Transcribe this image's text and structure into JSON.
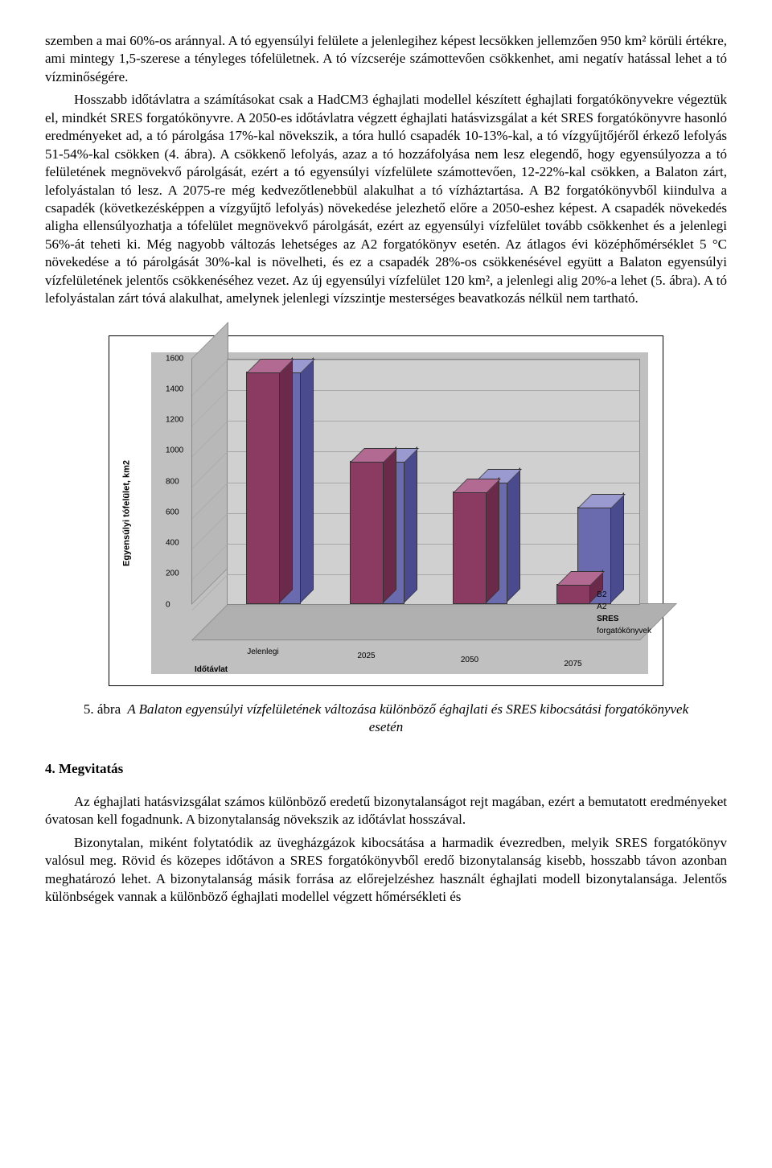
{
  "text": {
    "p1": "szemben a mai 60%-os aránnyal. A tó egyensúlyi felülete a jelenlegihez képest lecsökken jellemzően 950 km² körüli értékre, ami mintegy 1,5-szerese a tényleges tófelületnek. A tó vízcseréje számottevően csökkenhet, ami negatív hatással lehet a tó vízminőségére.",
    "p2": "Hosszabb időtávlatra a számításokat csak a HadCM3 éghajlati modellel készített éghajlati forgatókönyvekre végeztük el, mindkét SRES forgatókönyvre. A 2050-es időtávlatra végzett éghajlati hatásvizsgálat a két SRES forgatókönyvre hasonló eredményeket ad, a tó párolgása 17%-kal növekszik, a tóra hulló csapadék 10-13%-kal, a tó vízgyűjtőjéről érkező lefolyás 51-54%-kal csökken (4. ábra). A csökkenő lefolyás, azaz a tó hozzáfolyása nem lesz elegendő, hogy egyensúlyozza a tó felületének megnövekvő párolgását, ezért a tó egyensúlyi vízfelülete számottevően, 12-22%-kal csökken, a Balaton zárt, lefolyástalan tó lesz. A 2075-re még kedvezőtlenebbül alakulhat a tó vízháztartása. A B2 forgatókönyvből kiindulva a csapadék (következésképpen a vízgyűjtő lefolyás) növekedése jelezhető előre a 2050-eshez képest. A csapadék növekedés aligha ellensúlyozhatja a tófelület megnövekvő párolgását, ezért az egyensúlyi vízfelület tovább csökkenhet és a jelenlegi 56%-át teheti ki. Még nagyobb változás lehetséges az A2 forgatókönyv esetén. Az átlagos évi középhőmérséklet 5 °C növekedése a tó párolgását 30%-kal is növelheti, és ez a csapadék 28%-os csökkenésével együtt a Balaton egyensúlyi vízfelületének jelentős csökkenéséhez vezet. Az új egyensúlyi vízfelület 120 km², a jelenlegi alig 20%-a lehet (5. ábra). A tó lefolyástalan zárt tóvá alakulhat, amelynek jelenlegi vízszintje mesterséges beavatkozás nélkül nem tartható.",
    "caption_num": "5. ábra",
    "caption_rest": "A Balaton egyensúlyi vízfelületének változása különböző éghajlati és SRES kibocsátási forgatókönyvek esetén",
    "section": "4. Megvitatás",
    "p3": "Az éghajlati hatásvizsgálat számos különböző eredetű bizonytalanságot rejt magában, ezért a bemutatott eredményeket óvatosan kell fogadnunk. A bizonytalanság növekszik az időtávlat hosszával.",
    "p4": "Bizonytalan, miként folytatódik az üvegházgázok kibocsátása a harmadik évezredben, melyik SRES forgatókönyv valósul meg. Rövid és közepes időtávon a SRES forgatókönyvből eredő bizonytalanság kisebb, hosszabb távon azonban meghatározó lehet. A bizonytalanság másik forrása az előrejelzéshez használt éghajlati modell bizonytalansága. Jelentős különbségek vannak a különböző éghajlati modellel végzett hőmérsékleti és"
  },
  "chart": {
    "type": "bar3d",
    "ylabel": "Egyensúlyi tófelület, km2",
    "xlabel": "Időtávlat",
    "series_label_title": "SRES forgatókönyvek",
    "ylim": [
      0,
      1600
    ],
    "ytick_step": 200,
    "yticks": [
      0,
      200,
      400,
      600,
      800,
      1000,
      1200,
      1400,
      1600
    ],
    "categories": [
      "Jelenlegi",
      "2025",
      "2050",
      "2075"
    ],
    "series": [
      "B2",
      "A2"
    ],
    "values_B2": [
      1500,
      920,
      780,
      620
    ],
    "values_A2": [
      1500,
      920,
      720,
      120
    ],
    "colors": {
      "B2_front": "#6a6aae",
      "B2_top": "#9a9ad0",
      "B2_side": "#4a4a8e",
      "A2_front": "#8b3a62",
      "A2_top": "#b36a92",
      "A2_side": "#6b2a4a",
      "plot_bg": "#d0d0d0",
      "floor_bg": "#b0b0b0",
      "grid": "#a8a8a8"
    },
    "font_family": "Arial",
    "tick_fontsize": 10,
    "label_fontsize": 11
  }
}
